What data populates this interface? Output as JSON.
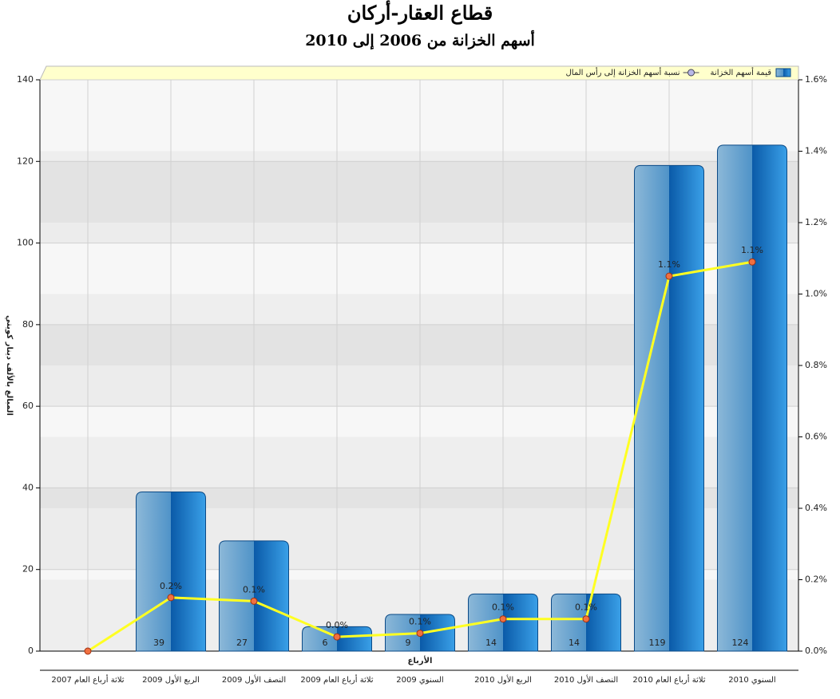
{
  "chart_data": {
    "type": "bar-line",
    "title": "قطاع العقار-أركان",
    "subtitle": "أسهم الخزانة من 2006 إلى 2010",
    "y_label": "المبالغ بالألف دينار كويتي",
    "x_label": "الأرباع",
    "categories": [
      "ثلاثة أرباع العام 2007",
      "الربع الأول 2009",
      "النصف الأول 2009",
      "ثلاثة أرباع العام 2009",
      "السنوي 2009",
      "الربع الأول 2010",
      "النصف الأول 2010",
      "ثلاثة أرباع العام 2010",
      "السنوي 2010"
    ],
    "series": [
      {
        "name": "قيمة أسهم الخزانة",
        "type": "bar",
        "color": "#1a74c4",
        "values": [
          null,
          39,
          27,
          6,
          9,
          14,
          14,
          119,
          124
        ]
      },
      {
        "name": "نسبة أسهم الخزانة إلى رأس المال",
        "type": "line",
        "axis": "y2",
        "color": "#ffff22",
        "values": [
          0,
          0.15,
          0.14,
          0.04,
          0.05,
          0.09,
          0.09,
          1.05,
          1.09
        ],
        "value_labels": [
          null,
          "0.2%",
          "0.1%",
          "0.0%",
          "0.1%",
          "0.1%",
          "0.1%",
          "1.1%",
          "1.1%"
        ]
      }
    ],
    "ylim": [
      0,
      140
    ],
    "yticks": [
      0,
      20,
      40,
      60,
      80,
      100,
      120,
      140
    ],
    "y2lim": [
      0,
      1.6
    ],
    "y2ticks": [
      {
        "value": 0,
        "label": "0.0%"
      },
      {
        "value": 0.2,
        "label": "0.2%"
      },
      {
        "value": 0.4,
        "label": "0.4%"
      },
      {
        "value": 0.6,
        "label": "0.6%"
      },
      {
        "value": 0.8,
        "label": "0.8%"
      },
      {
        "value": 1.0,
        "label": "1.0%"
      },
      {
        "value": 1.2,
        "label": "1.2%"
      },
      {
        "value": 1.4,
        "label": "1.4%"
      },
      {
        "value": 1.6,
        "label": "1.6%"
      }
    ],
    "grid": true,
    "legend": "top-right"
  }
}
